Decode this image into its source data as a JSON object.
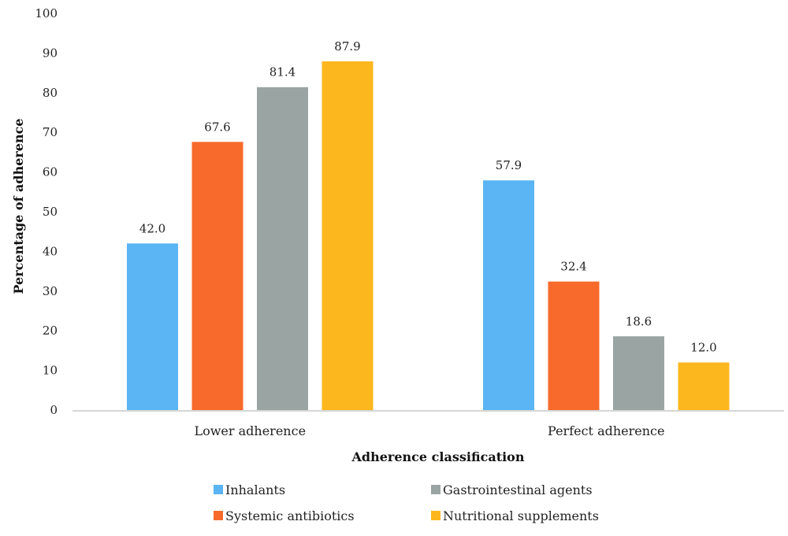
{
  "chart_data": {
    "type": "bar",
    "categories": [
      "Lower adherence",
      "Perfect adherence"
    ],
    "series": [
      {
        "name": "Inhalants",
        "values": [
          42.0,
          57.9
        ],
        "color": "#5BB4F3"
      },
      {
        "name": "Systemic antibiotics",
        "values": [
          67.6,
          32.4
        ],
        "color": "#F76A2C"
      },
      {
        "name": "Gastrointestinal agents",
        "values": [
          81.4,
          18.6
        ],
        "color": "#9AA5A3"
      },
      {
        "name": "Nutritional supplements",
        "values": [
          87.9,
          12.0
        ],
        "color": "#FDB71E"
      }
    ],
    "data_labels": [
      [
        "42.0",
        "57.9"
      ],
      [
        "67.6",
        "32.4"
      ],
      [
        "81.4",
        "18.6"
      ],
      [
        "87.9",
        "12.0"
      ]
    ],
    "xlabel": "Adherence classification",
    "ylabel": "Percentage of adherence",
    "ylim": [
      0,
      100
    ],
    "yticks": [
      "0",
      "10",
      "20",
      "30",
      "40",
      "50",
      "60",
      "70",
      "80",
      "90",
      "100"
    ],
    "grid": false,
    "legend": "bottom"
  }
}
